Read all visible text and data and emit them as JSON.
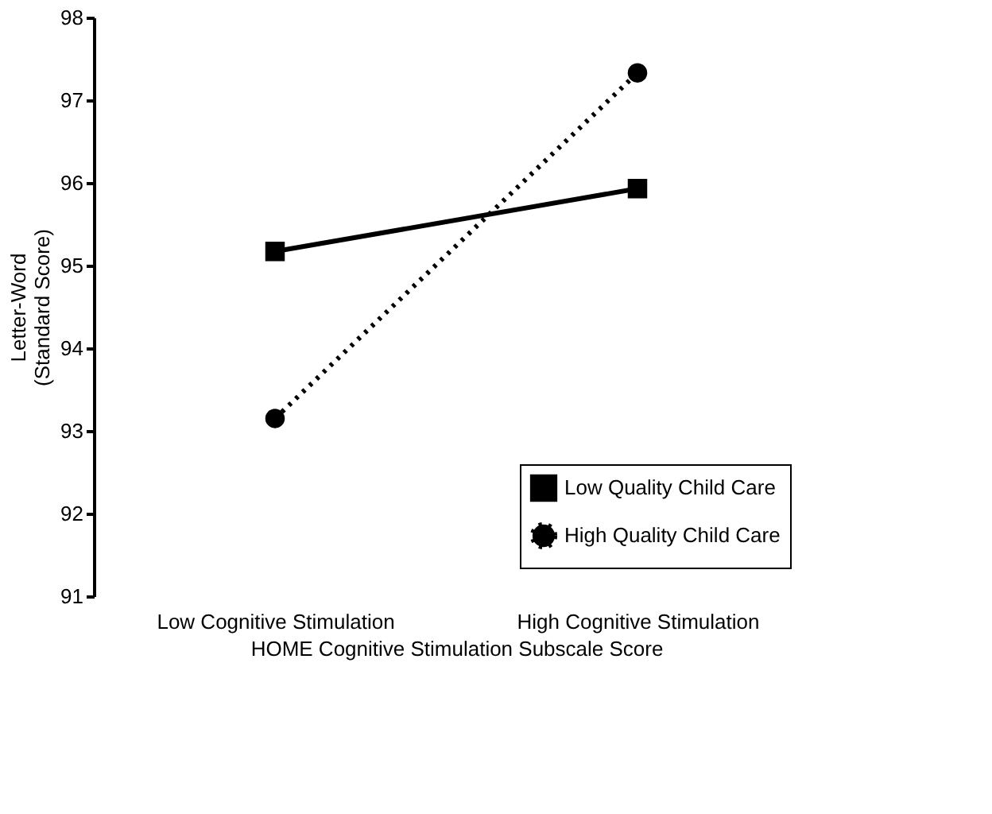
{
  "chart_data": {
    "type": "line",
    "xlabel": "HOME Cognitive Stimulation Subscale Score",
    "ylabel": "Letter-Word\n(Standard Score)",
    "categories": [
      "Low Cognitive Stimulation",
      "High Cognitive Stimulation"
    ],
    "series": [
      {
        "name": "Low Quality Child Care",
        "color": "#000000",
        "values": [
          95.17,
          95.93
        ],
        "marker": "square",
        "line_style": "solid"
      },
      {
        "name": "High Quality Child Care",
        "color": "#000000",
        "values": [
          93.15,
          97.33
        ],
        "marker": "circle",
        "line_style": "dotted"
      }
    ],
    "ylim": [
      91,
      98
    ],
    "yticks": [
      91,
      92,
      93,
      94,
      95,
      96,
      97,
      98
    ],
    "grid": false,
    "legend": "bottom right"
  }
}
